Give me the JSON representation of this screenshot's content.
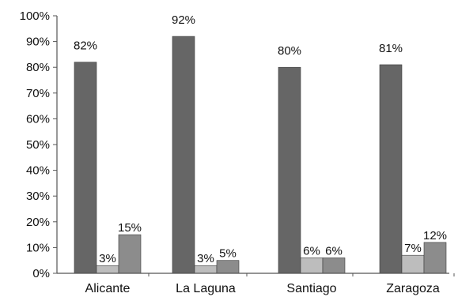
{
  "chart_data": {
    "type": "bar",
    "title": "",
    "xlabel": "",
    "ylabel": "",
    "categories": [
      "Alicante",
      "La Laguna",
      "Santiago",
      "Zaragoza"
    ],
    "series": [
      {
        "values": [
          82,
          92,
          80,
          81
        ],
        "color": "#666666"
      },
      {
        "values": [
          3,
          3,
          6,
          7
        ],
        "color": "#bdbdbd"
      },
      {
        "values": [
          15,
          5,
          6,
          12
        ],
        "color": "#8c8c8c"
      }
    ],
    "data_labels": [
      [
        "82%",
        "92%",
        "80%",
        "81%"
      ],
      [
        "3%",
        "3%",
        "6%",
        "7%"
      ],
      [
        "15%",
        "5%",
        "6%",
        "12%"
      ]
    ],
    "ylim": [
      0,
      100
    ],
    "yticks": [
      0,
      10,
      20,
      30,
      40,
      50,
      60,
      70,
      80,
      90,
      100
    ],
    "ytick_labels": [
      "0%",
      "10%",
      "20%",
      "30%",
      "40%",
      "50%",
      "60%",
      "70%",
      "80%",
      "90%",
      "100%"
    ],
    "grid": false,
    "legend": "none"
  }
}
